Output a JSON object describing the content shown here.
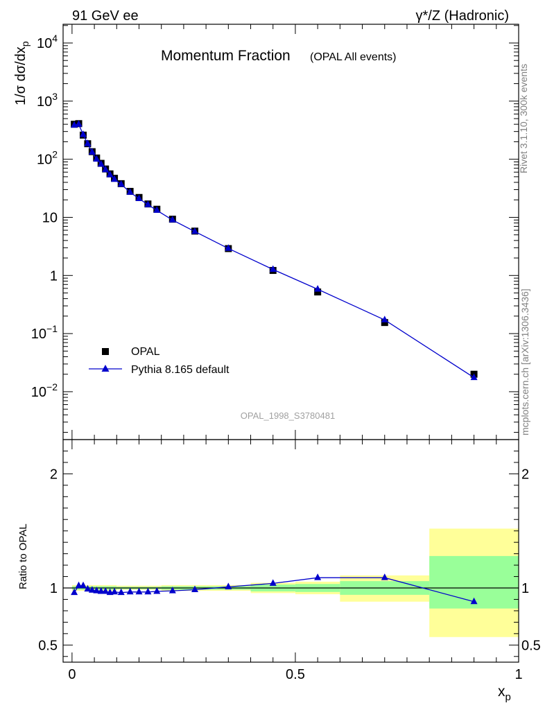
{
  "header": {
    "left": "91 GeV ee",
    "right": "γ*/Z (Hadronic)"
  },
  "side_text": {
    "top": "Rivet 3.1.10,  300k events",
    "bottom": "mcplots.cern.ch [arXiv:1306.3436]"
  },
  "colors": {
    "data": "#000000",
    "mc": "#0000cc",
    "band_inner": "#99ff99",
    "band_outer": "#ffff99",
    "ref_line": "#000000",
    "analysis_label": "#a0a0a0"
  },
  "chart_data": [
    {
      "type": "scatter",
      "title": "Momentum Fraction",
      "subtitle": "(OPAL All events)",
      "ylabel": "1/σ dσ/dx_p",
      "xlabel": "",
      "xlim": [
        -0.02,
        1.0
      ],
      "ylim": [
        0.0015,
        21000
      ],
      "yscale": "log",
      "y_tick_labels": [
        {
          "value": 0.01,
          "base": "10",
          "exp": "−2"
        },
        {
          "value": 0.1,
          "base": "10",
          "exp": "−1"
        },
        {
          "value": 1,
          "text": "1"
        },
        {
          "value": 10,
          "text": "10"
        },
        {
          "value": 100,
          "base": "10",
          "exp": "2"
        },
        {
          "value": 1000,
          "base": "10",
          "exp": "3"
        },
        {
          "value": 10000,
          "base": "10",
          "exp": "4"
        }
      ],
      "analysis_label": "OPAL_1998_S3780481",
      "legend": {
        "position": "bottom-left",
        "entries": [
          {
            "name": "OPAL",
            "marker": "square"
          },
          {
            "name": "Pythia 8.165 default",
            "marker": "triangle-line"
          }
        ]
      },
      "x": [
        0.005,
        0.015,
        0.025,
        0.035,
        0.045,
        0.055,
        0.065,
        0.075,
        0.085,
        0.095,
        0.11,
        0.13,
        0.15,
        0.17,
        0.19,
        0.225,
        0.275,
        0.35,
        0.45,
        0.55,
        0.7,
        0.9
      ],
      "series": [
        {
          "name": "OPAL",
          "values": [
            400,
            410,
            260,
            185,
            135,
            105,
            85,
            68,
            56,
            47,
            38,
            28,
            22,
            17,
            13.8,
            9.3,
            5.8,
            2.9,
            1.22,
            0.52,
            0.155,
            0.02
          ]
        },
        {
          "name": "Pythia 8.165 default",
          "values": [
            385,
            400,
            265,
            185,
            132,
            100,
            82,
            66,
            54,
            45,
            37,
            27,
            21,
            16.5,
            13.2,
            9.0,
            5.7,
            2.92,
            1.27,
            0.58,
            0.172,
            0.0175
          ]
        }
      ]
    },
    {
      "type": "line",
      "title": "",
      "ylabel": "Ratio to OPAL",
      "xlabel": "x_p",
      "xlim": [
        -0.02,
        1.0
      ],
      "ylim": [
        0.35,
        2.3
      ],
      "y_tick_labels": [
        "0.5",
        "1",
        "2"
      ],
      "x_tick_labels": [
        "0",
        "0.5",
        "1"
      ],
      "x": [
        0.005,
        0.015,
        0.025,
        0.035,
        0.045,
        0.055,
        0.065,
        0.075,
        0.085,
        0.095,
        0.11,
        0.13,
        0.15,
        0.17,
        0.19,
        0.225,
        0.275,
        0.35,
        0.45,
        0.55,
        0.7,
        0.9
      ],
      "series": [
        {
          "name": "Pythia 8.165 default",
          "values": [
            0.96,
            1.02,
            1.02,
            0.99,
            0.98,
            0.975,
            0.97,
            0.97,
            0.96,
            0.965,
            0.96,
            0.965,
            0.965,
            0.965,
            0.97,
            0.975,
            0.985,
            1.01,
            1.04,
            1.09,
            1.09,
            0.88
          ]
        }
      ],
      "bands": [
        {
          "x": [
            0.0,
            0.02
          ],
          "inner": [
            0.985,
            1.015
          ],
          "outer": [
            0.975,
            1.025
          ]
        },
        {
          "x": [
            0.02,
            0.1
          ],
          "inner": [
            0.985,
            1.015
          ],
          "outer": [
            0.975,
            1.025
          ]
        },
        {
          "x": [
            0.1,
            0.2
          ],
          "inner": [
            0.99,
            1.01
          ],
          "outer": [
            0.985,
            1.02
          ]
        },
        {
          "x": [
            0.2,
            0.3
          ],
          "inner": [
            0.985,
            1.015
          ],
          "outer": [
            0.975,
            1.025
          ]
        },
        {
          "x": [
            0.3,
            0.4
          ],
          "inner": [
            0.985,
            1.015
          ],
          "outer": [
            0.975,
            1.025
          ]
        },
        {
          "x": [
            0.4,
            0.5
          ],
          "inner": [
            0.97,
            1.03
          ],
          "outer": [
            0.955,
            1.045
          ]
        },
        {
          "x": [
            0.5,
            0.6
          ],
          "inner": [
            0.965,
            1.035
          ],
          "outer": [
            0.945,
            1.055
          ]
        },
        {
          "x": [
            0.6,
            0.8
          ],
          "inner": [
            0.94,
            1.06
          ],
          "outer": [
            0.88,
            1.11
          ]
        },
        {
          "x": [
            0.8,
            1.0
          ],
          "inner": [
            0.82,
            1.28
          ],
          "outer": [
            0.57,
            1.52
          ]
        }
      ]
    }
  ]
}
